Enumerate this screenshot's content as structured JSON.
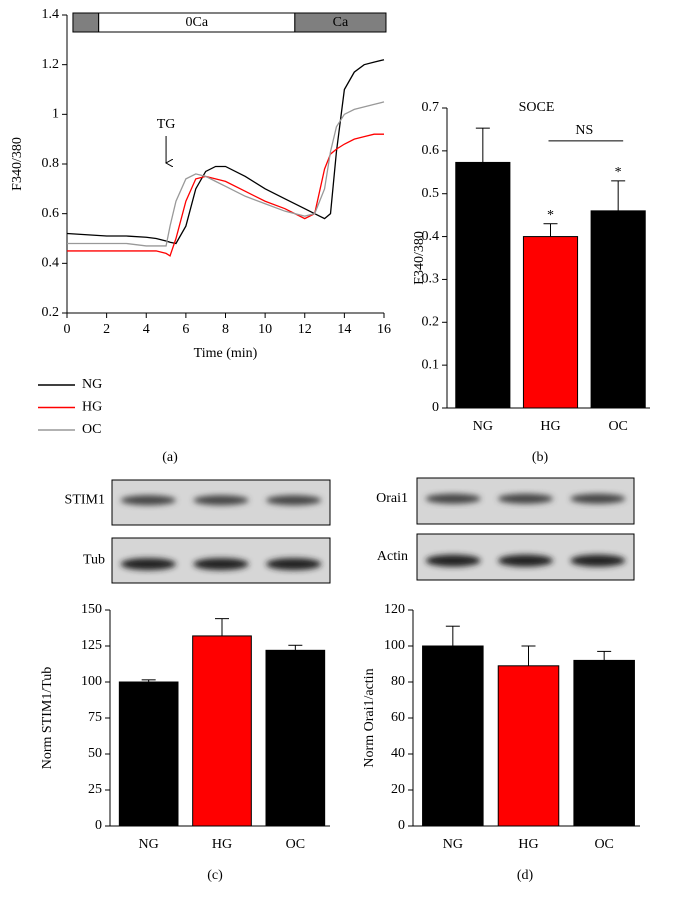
{
  "chart_data": [
    {
      "type": "line",
      "ylabel": "F340/380",
      "xlabel": "Time (min)",
      "caption": "(a)",
      "xlim": [
        0,
        16
      ],
      "xticks": [
        0,
        2,
        4,
        6,
        8,
        10,
        12,
        14,
        16
      ],
      "ylim": [
        0.2,
        1.4
      ],
      "yticks": [
        0.2,
        0.4,
        0.6,
        0.8,
        1,
        1.2,
        1.4
      ],
      "legend": "below-left",
      "periods": [
        {
          "label": null,
          "start": 0.3,
          "end": 1.6,
          "color": "#7f7f7f"
        },
        {
          "label": "0Ca",
          "start": 1.6,
          "end": 11.5,
          "color": "#ffffff"
        },
        {
          "label": "Ca",
          "start": 11.5,
          "end": 16.1,
          "color": "#7f7f7f"
        }
      ],
      "annotations": [
        {
          "text": "TG",
          "x": 5
        }
      ],
      "x": [
        0,
        1,
        2,
        3,
        4,
        4.5,
        5,
        5.2,
        5.5,
        6,
        6.5,
        7,
        7.5,
        8,
        9,
        10,
        11,
        12,
        12.5,
        13,
        13.3,
        13.6,
        14,
        14.5,
        15,
        15.5,
        16
      ],
      "series": [
        {
          "name": "NG",
          "color": "#000000",
          "values": [
            0.52,
            0.515,
            0.51,
            0.51,
            0.505,
            0.5,
            0.49,
            0.485,
            0.48,
            0.55,
            0.7,
            0.77,
            0.79,
            0.79,
            0.75,
            0.7,
            0.66,
            0.62,
            0.6,
            0.58,
            0.6,
            0.85,
            1.1,
            1.17,
            1.2,
            1.21,
            1.22
          ]
        },
        {
          "name": "HG",
          "color": "#ff0000",
          "values": [
            0.45,
            0.45,
            0.45,
            0.45,
            0.45,
            0.45,
            0.44,
            0.43,
            0.5,
            0.65,
            0.74,
            0.75,
            0.74,
            0.73,
            0.69,
            0.65,
            0.62,
            0.58,
            0.6,
            0.78,
            0.84,
            0.86,
            0.88,
            0.9,
            0.91,
            0.92,
            0.92
          ]
        },
        {
          "name": "OC",
          "color": "#999999",
          "values": [
            0.48,
            0.48,
            0.48,
            0.48,
            0.47,
            0.47,
            0.47,
            0.55,
            0.65,
            0.74,
            0.76,
            0.75,
            0.73,
            0.71,
            0.67,
            0.64,
            0.61,
            0.59,
            0.6,
            0.7,
            0.85,
            0.95,
            1.0,
            1.02,
            1.03,
            1.04,
            1.05
          ]
        }
      ]
    },
    {
      "type": "bar",
      "title": "SOCE",
      "ylabel": "F340/380",
      "caption": "(b)",
      "categories": [
        "NG",
        "HG",
        "OC"
      ],
      "values": [
        0.573,
        0.4,
        0.46
      ],
      "errors": [
        0.08,
        0.03,
        0.07
      ],
      "colors": [
        "#000000",
        "#ff0000",
        "#000000"
      ],
      "ylim": [
        0,
        0.7
      ],
      "yticks": [
        0,
        0.1,
        0.2,
        0.3,
        0.4,
        0.5,
        0.6,
        0.7
      ],
      "significance": [
        null,
        "*",
        "*"
      ],
      "comparison": {
        "label": "NS",
        "between": [
          "HG",
          "OC"
        ]
      }
    },
    {
      "type": "bar",
      "ylabel": "Norm STIM1/Tub",
      "caption": "(c)",
      "blots": [
        "STIM1",
        "Tub"
      ],
      "categories": [
        "NG",
        "HG",
        "OC"
      ],
      "values": [
        100,
        132,
        122
      ],
      "errors": [
        1.5,
        12,
        3.5
      ],
      "colors": [
        "#000000",
        "#ff0000",
        "#000000"
      ],
      "ylim": [
        0,
        150
      ],
      "yticks": [
        0,
        25,
        50,
        75,
        100,
        125,
        150
      ]
    },
    {
      "type": "bar",
      "ylabel": "Norm Orai1/actin",
      "caption": "(d)",
      "blots": [
        "Orai1",
        "Actin"
      ],
      "categories": [
        "NG",
        "HG",
        "OC"
      ],
      "values": [
        100,
        89,
        92
      ],
      "errors": [
        11,
        11,
        5
      ],
      "colors": [
        "#000000",
        "#ff0000",
        "#000000"
      ],
      "ylim": [
        0,
        120
      ],
      "yticks": [
        0,
        20,
        40,
        60,
        80,
        100,
        120
      ]
    }
  ]
}
